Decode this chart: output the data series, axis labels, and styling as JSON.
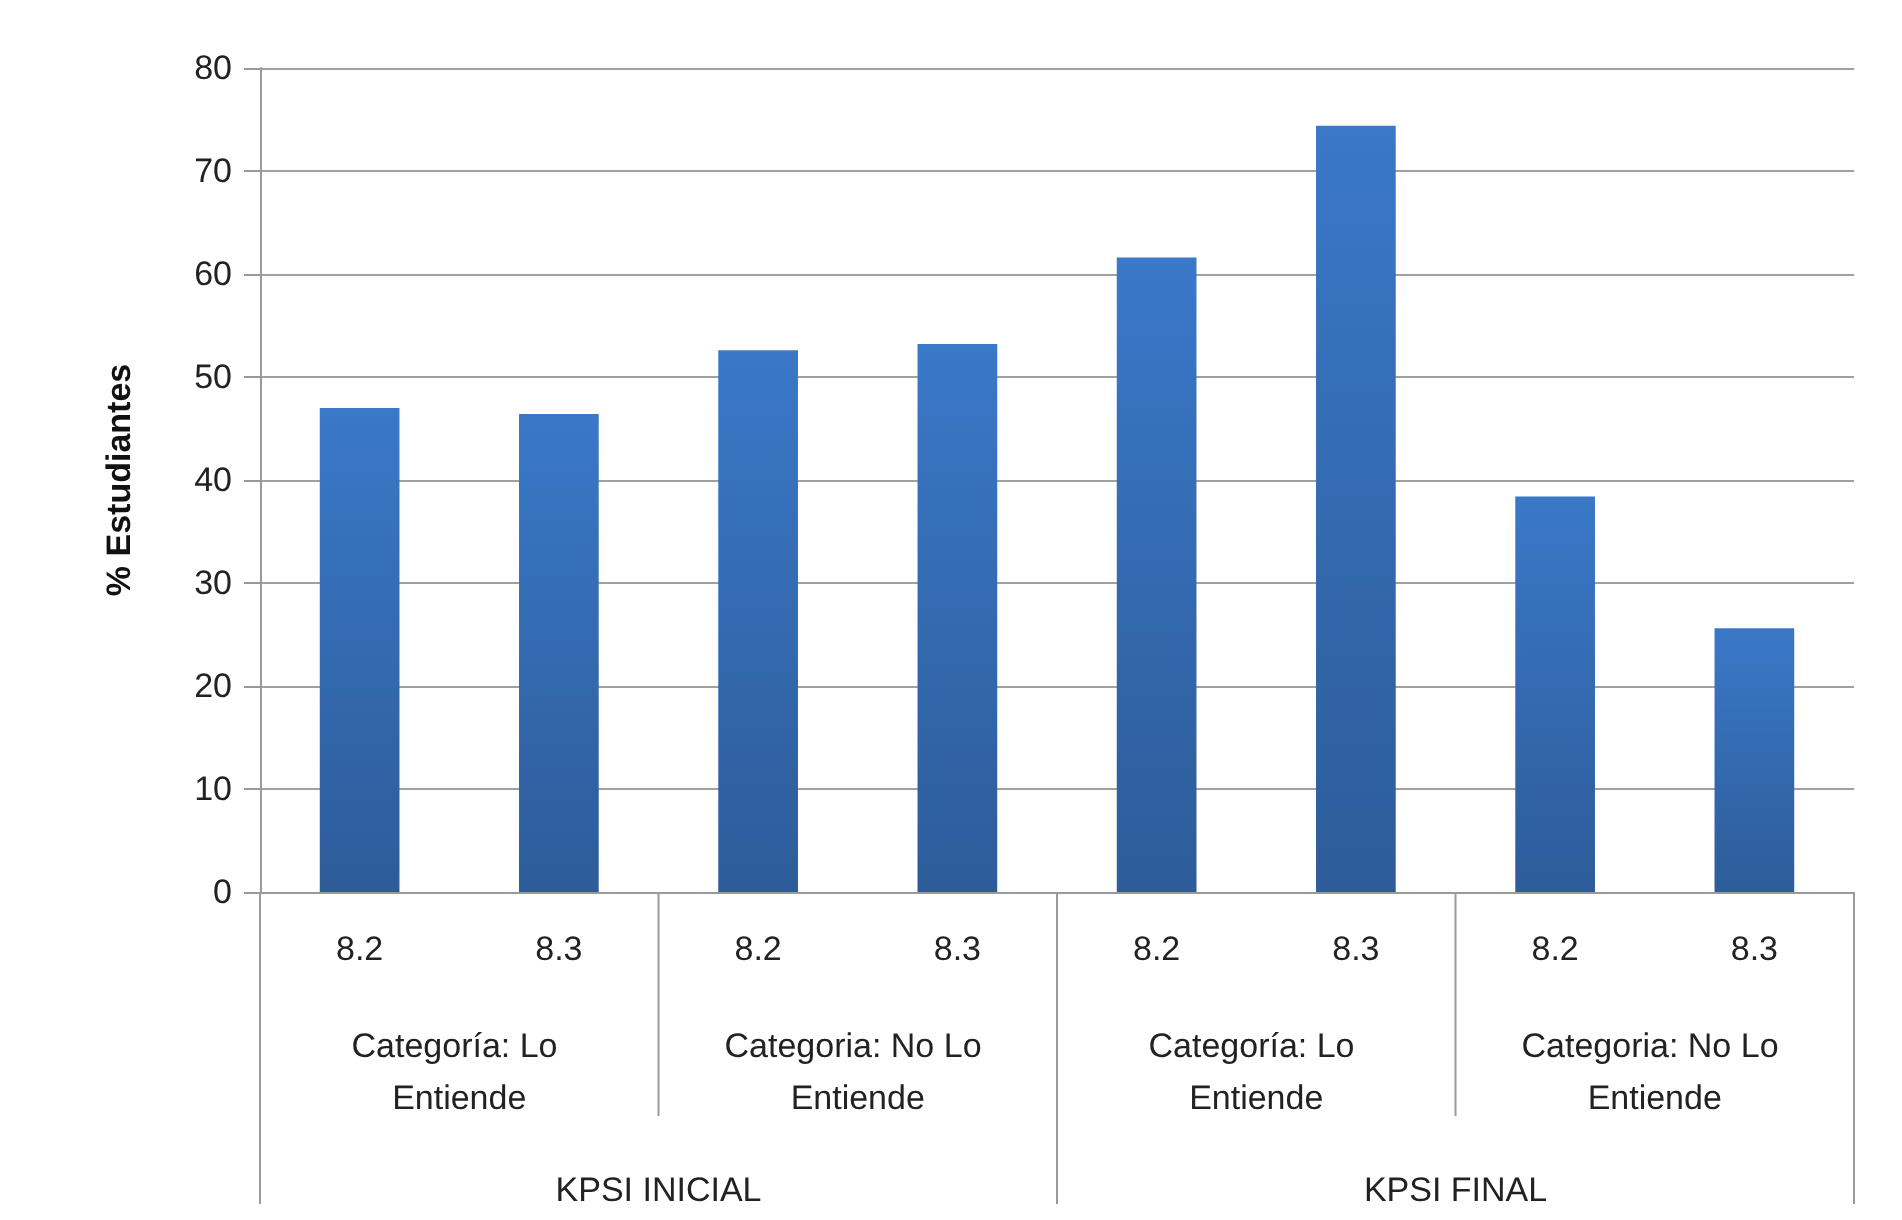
{
  "chart_data": {
    "type": "bar",
    "ylabel": "% Estudiantes",
    "categories": [
      "8.2",
      "8.3",
      "8.2",
      "8.3",
      "8.2",
      "8.3",
      "8.2",
      "8.3"
    ],
    "values": [
      47.0,
      46.4,
      52.6,
      53.2,
      61.6,
      74.4,
      38.4,
      25.6
    ],
    "color": "#3a78c8",
    "ylim": [
      0,
      80
    ],
    "yticks": [
      0,
      10,
      20,
      30,
      40,
      50,
      60,
      70,
      80
    ],
    "grid": "y",
    "annotations": [
      "Categoría: Lo Entiende",
      "Categoria: No Lo Entiende",
      "Categoría: Lo Entiende",
      "Categoria: No Lo Entiende",
      "KPSI INICIAL",
      "KPSI FINAL"
    ]
  }
}
